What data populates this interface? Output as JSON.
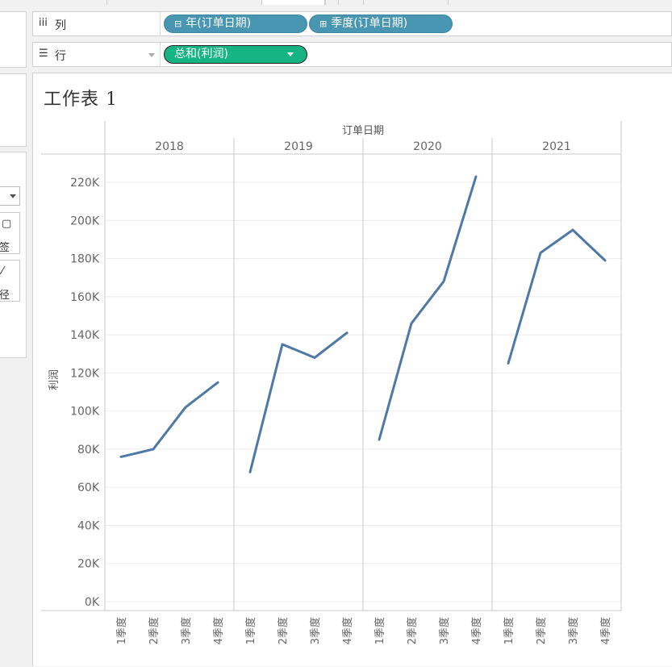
{
  "shelves": {
    "columns": {
      "label": "列",
      "pills": [
        {
          "text": "年(订单日期)",
          "prefix": "⊟"
        },
        {
          "text": "季度(订单日期)",
          "prefix": "⊞"
        }
      ]
    },
    "rows": {
      "label": "行",
      "pills": [
        {
          "text": "总和(利润)"
        }
      ]
    }
  },
  "left_panel": {
    "marks_buttons": [
      {
        "icon": "▢",
        "label": "签"
      },
      {
        "icon": "⁄",
        "label": "径"
      }
    ]
  },
  "sheet": {
    "title": "工作表 1"
  },
  "chart_data": {
    "type": "line",
    "column_header": "订单日期",
    "ylabel": "利润",
    "ylim": [
      0,
      230000
    ],
    "yticks": [
      "0K",
      "20K",
      "40K",
      "60K",
      "80K",
      "100K",
      "120K",
      "140K",
      "160K",
      "180K",
      "200K",
      "220K"
    ],
    "ytick_values": [
      0,
      20000,
      40000,
      60000,
      80000,
      100000,
      120000,
      140000,
      160000,
      180000,
      200000,
      220000
    ],
    "years": [
      "2018",
      "2019",
      "2020",
      "2021"
    ],
    "quarters": [
      "1季度",
      "2季度",
      "3季度",
      "4季度"
    ],
    "series": [
      {
        "year": "2018",
        "values": [
          76000,
          80000,
          102000,
          115000
        ]
      },
      {
        "year": "2019",
        "values": [
          68000,
          135000,
          128000,
          141000
        ]
      },
      {
        "year": "2020",
        "values": [
          85000,
          146000,
          168000,
          223000
        ]
      },
      {
        "year": "2021",
        "values": [
          125000,
          183000,
          195000,
          179000
        ]
      }
    ],
    "line_color": "#4e79a7",
    "grid": true
  }
}
